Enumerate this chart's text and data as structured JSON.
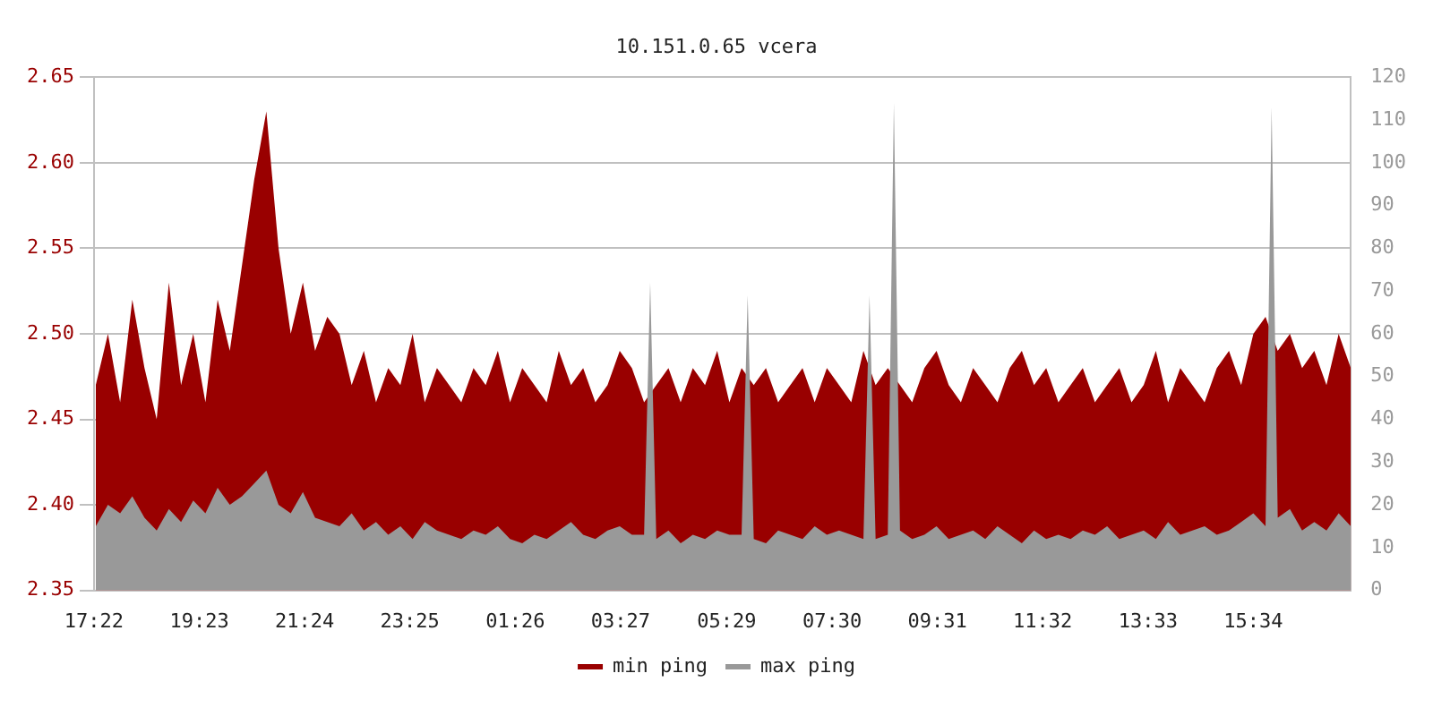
{
  "chart_data": {
    "type": "area",
    "title": "10.151.0.65 vcera",
    "x": [
      "--01-01T17:24",
      "--01-01T17:38",
      "--01-01T17:52",
      "--01-01T18:06",
      "--01-01T18:20",
      "--01-01T18:34",
      "--01-01T18:48",
      "--01-01T19:02",
      "--01-01T19:16",
      "--01-01T19:30",
      "--01-01T19:44",
      "--01-01T19:58",
      "--01-01T20:12",
      "--01-01T20:26",
      "--01-01T20:40",
      "--01-01T20:54",
      "--01-01T21:08",
      "--01-01T21:22",
      "--01-01T21:36",
      "--01-01T21:50",
      "--01-01T22:04",
      "--01-01T22:18",
      "--01-01T22:32",
      "--01-01T22:46",
      "--01-01T23:00",
      "--01-01T23:14",
      "--01-01T23:28",
      "--01-01T23:42",
      "--01-01T23:56",
      "--01-02T00:10",
      "--01-02T00:24",
      "--01-02T00:38",
      "--01-02T00:52",
      "--01-02T01:06",
      "--01-02T01:20",
      "--01-02T01:34",
      "--01-02T01:48",
      "--01-02T02:02",
      "--01-02T02:16",
      "--01-02T02:30",
      "--01-02T02:44",
      "--01-02T02:58",
      "--01-02T03:12",
      "--01-02T03:26",
      "--01-02T03:40",
      "--01-02T03:54",
      "--01-02T04:08",
      "--01-02T04:22",
      "--01-02T04:36",
      "--01-02T04:50",
      "--01-02T05:04",
      "--01-02T05:18",
      "--01-02T05:32",
      "--01-02T05:46",
      "--01-02T06:00",
      "--01-02T06:14",
      "--01-02T06:28",
      "--01-02T06:42",
      "--01-02T06:56",
      "--01-02T07:10",
      "--01-02T07:24",
      "--01-02T07:38",
      "--01-02T07:52",
      "--01-02T08:06",
      "--01-02T08:20",
      "--01-02T08:34",
      "--01-02T08:48",
      "--01-02T09:02",
      "--01-02T09:16",
      "--01-02T09:30",
      "--01-02T09:44",
      "--01-02T09:58",
      "--01-02T10:12",
      "--01-02T10:26",
      "--01-02T10:40",
      "--01-02T10:54",
      "--01-02T11:08",
      "--01-02T11:22",
      "--01-02T11:36",
      "--01-02T11:50",
      "--01-02T12:04",
      "--01-02T12:18",
      "--01-02T12:32",
      "--01-02T12:46",
      "--01-02T13:00",
      "--01-02T13:14",
      "--01-02T13:28",
      "--01-02T13:42",
      "--01-02T13:56",
      "--01-02T14:10",
      "--01-02T14:24",
      "--01-02T14:38",
      "--01-02T14:52",
      "--01-02T15:06",
      "--01-02T15:20",
      "--01-02T15:34",
      "--01-02T15:48",
      "--01-02T16:02",
      "--01-02T16:16",
      "--01-02T16:30",
      "--01-02T16:44",
      "--01-02T16:58",
      "--01-02T17:12",
      "--01-02T17:26"
    ],
    "series": [
      {
        "name": "min ping",
        "color": "#990000",
        "values": [
          2.47,
          2.5,
          2.46,
          2.52,
          2.48,
          2.45,
          2.53,
          2.47,
          2.5,
          2.46,
          2.52,
          2.49,
          2.54,
          2.59,
          2.63,
          2.55,
          2.5,
          2.53,
          2.49,
          2.51,
          2.5,
          2.47,
          2.49,
          2.46,
          2.48,
          2.47,
          2.5,
          2.46,
          2.48,
          2.47,
          2.46,
          2.48,
          2.47,
          2.49,
          2.46,
          2.48,
          2.47,
          2.46,
          2.49,
          2.47,
          2.48,
          2.46,
          2.47,
          2.49,
          2.48,
          2.46,
          2.47,
          2.48,
          2.46,
          2.48,
          2.47,
          2.49,
          2.46,
          2.48,
          2.47,
          2.48,
          2.46,
          2.47,
          2.48,
          2.46,
          2.48,
          2.47,
          2.46,
          2.49,
          2.47,
          2.48,
          2.47,
          2.46,
          2.48,
          2.49,
          2.47,
          2.46,
          2.48,
          2.47,
          2.46,
          2.48,
          2.49,
          2.47,
          2.48,
          2.46,
          2.47,
          2.48,
          2.46,
          2.47,
          2.48,
          2.46,
          2.47,
          2.49,
          2.46,
          2.48,
          2.47,
          2.46,
          2.48,
          2.49,
          2.47,
          2.5,
          2.51,
          2.49,
          2.5,
          2.48,
          2.49,
          2.47,
          2.5,
          2.48
        ]
      },
      {
        "name": "max ping",
        "color": "#999999",
        "axis": "y2",
        "x": [
          "--01-01T17:24",
          "--01-01T17:38",
          "--01-01T17:52",
          "--01-01T18:06",
          "--01-01T18:20",
          "--01-01T18:34",
          "--01-01T18:48",
          "--01-01T19:02",
          "--01-01T19:16",
          "--01-01T19:30",
          "--01-01T19:44",
          "--01-01T19:58",
          "--01-01T20:12",
          "--01-01T20:26",
          "--01-01T20:40",
          "--01-01T20:54",
          "--01-01T21:08",
          "--01-01T21:22",
          "--01-01T21:36",
          "--01-01T21:50",
          "--01-01T22:04",
          "--01-01T22:18",
          "--01-01T22:32",
          "--01-01T22:46",
          "--01-01T23:00",
          "--01-01T23:14",
          "--01-01T23:28",
          "--01-01T23:42",
          "--01-01T23:56",
          "--01-02T00:10",
          "--01-02T00:24",
          "--01-02T00:38",
          "--01-02T00:52",
          "--01-02T01:06",
          "--01-02T01:20",
          "--01-02T01:34",
          "--01-02T01:48",
          "--01-02T02:02",
          "--01-02T02:16",
          "--01-02T02:30",
          "--01-02T02:44",
          "--01-02T02:58",
          "--01-02T03:12",
          "--01-02T03:26",
          "--01-02T03:40",
          "--01-02T03:54",
          "--01-02T04:01",
          "--01-02T04:08",
          "--01-02T04:22",
          "--01-02T04:36",
          "--01-02T04:50",
          "--01-02T05:04",
          "--01-02T05:18",
          "--01-02T05:32",
          "--01-02T05:46",
          "--01-02T05:53",
          "--01-02T06:00",
          "--01-02T06:14",
          "--01-02T06:28",
          "--01-02T06:42",
          "--01-02T06:56",
          "--01-02T07:10",
          "--01-02T07:24",
          "--01-02T07:38",
          "--01-02T07:52",
          "--01-02T08:06",
          "--01-02T08:13",
          "--01-02T08:20",
          "--01-02T08:34",
          "--01-02T08:41",
          "--01-02T08:48",
          "--01-02T09:02",
          "--01-02T09:16",
          "--01-02T09:30",
          "--01-02T09:44",
          "--01-02T09:58",
          "--01-02T10:12",
          "--01-02T10:26",
          "--01-02T10:40",
          "--01-02T10:54",
          "--01-02T11:08",
          "--01-02T11:22",
          "--01-02T11:36",
          "--01-02T11:50",
          "--01-02T12:04",
          "--01-02T12:18",
          "--01-02T12:32",
          "--01-02T12:46",
          "--01-02T13:00",
          "--01-02T13:14",
          "--01-02T13:28",
          "--01-02T13:42",
          "--01-02T13:56",
          "--01-02T14:10",
          "--01-02T14:24",
          "--01-02T14:38",
          "--01-02T14:52",
          "--01-02T15:06",
          "--01-02T15:20",
          "--01-02T15:34",
          "--01-02T15:48",
          "--01-02T15:55",
          "--01-02T16:02",
          "--01-02T16:16",
          "--01-02T16:30",
          "--01-02T16:44",
          "--01-02T16:58",
          "--01-02T17:12",
          "--01-02T17:26"
        ],
        "values": [
          15,
          20,
          18,
          22,
          17,
          14,
          19,
          16,
          21,
          18,
          24,
          20,
          22,
          25,
          28,
          20,
          18,
          23,
          17,
          16,
          15,
          18,
          14,
          16,
          13,
          15,
          12,
          16,
          14,
          13,
          12,
          14,
          13,
          15,
          12,
          11,
          13,
          12,
          14,
          16,
          13,
          12,
          14,
          15,
          13,
          13,
          72,
          12,
          14,
          11,
          13,
          12,
          14,
          13,
          13,
          69,
          12,
          11,
          14,
          13,
          12,
          15,
          13,
          14,
          13,
          12,
          69,
          12,
          13,
          114,
          14,
          12,
          13,
          15,
          12,
          13,
          14,
          12,
          15,
          13,
          11,
          14,
          12,
          13,
          12,
          14,
          13,
          15,
          12,
          13,
          14,
          12,
          16,
          13,
          14,
          15,
          13,
          14,
          16,
          18,
          15,
          113,
          17,
          19,
          14,
          16,
          14,
          18,
          15
        ]
      }
    ],
    "xlim": [
      "--01-01T17:22",
      "--01-02T17:26"
    ],
    "xticks": [
      {
        "value": "--01-01T17:22",
        "label": "17:22"
      },
      {
        "value": "--01-01T19:23",
        "label": "19:23"
      },
      {
        "value": "--01-01T21:24",
        "label": "21:24"
      },
      {
        "value": "--01-01T23:25",
        "label": "23:25"
      },
      {
        "value": "--01-02T01:26",
        "label": "01:26"
      },
      {
        "value": "--01-02T03:27",
        "label": "03:27"
      },
      {
        "value": "--01-02T05:29",
        "label": "05:29"
      },
      {
        "value": "--01-02T07:30",
        "label": "07:30"
      },
      {
        "value": "--01-02T09:31",
        "label": "09:31"
      },
      {
        "value": "--01-02T11:32",
        "label": "11:32"
      },
      {
        "value": "--01-02T13:33",
        "label": "13:33"
      },
      {
        "value": "--01-02T15:34",
        "label": "15:34"
      }
    ],
    "ylim": [
      2.35,
      2.65
    ],
    "yticks": [
      2.35,
      {
        "value": 2.4,
        "label": "2.40"
      },
      2.45,
      {
        "value": 2.5,
        "label": "2.50"
      },
      2.55,
      {
        "value": 2.6,
        "label": "2.60"
      },
      2.65
    ],
    "y2lim": [
      0,
      120
    ],
    "y2ticks": [
      0,
      10,
      20,
      30,
      40,
      50,
      60,
      70,
      80,
      90,
      100,
      110,
      120
    ],
    "grid": "y",
    "legend": "bottom"
  }
}
